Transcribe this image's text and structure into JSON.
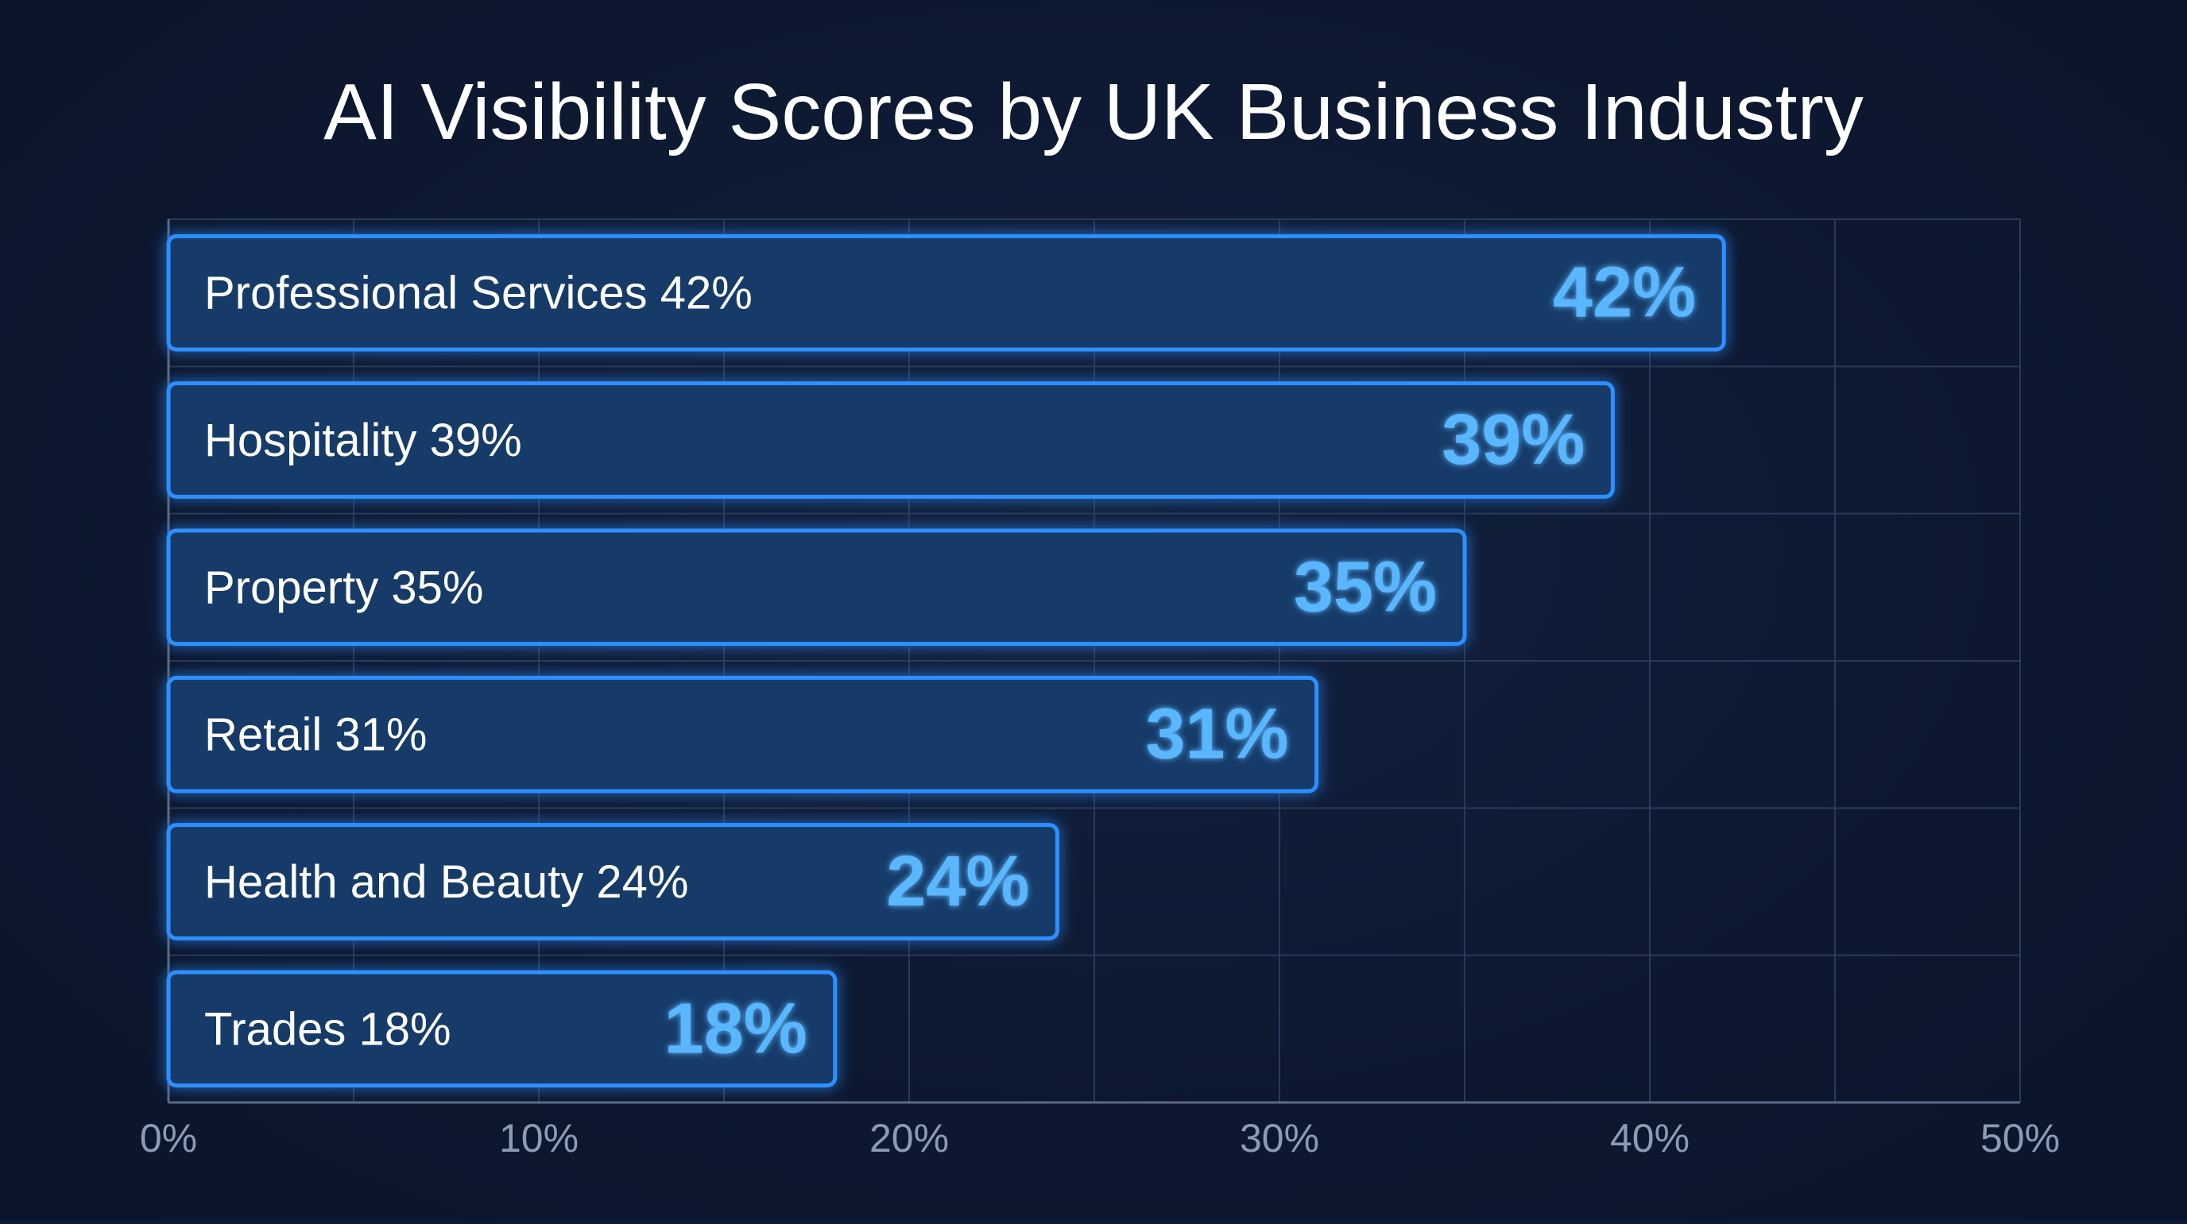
{
  "chart_data": {
    "type": "bar",
    "orientation": "horizontal",
    "title": "AI Visibility Scores by UK Business Industry",
    "xlabel": "",
    "ylabel": "",
    "xlim": [
      0,
      50
    ],
    "x_ticks": [
      0,
      10,
      20,
      30,
      40,
      50
    ],
    "x_tick_labels": [
      "0%",
      "10%",
      "20%",
      "30%",
      "40%",
      "50%"
    ],
    "grid": true,
    "legend": "none",
    "categories": [
      "Professional Services",
      "Hospitality",
      "Property",
      "Retail",
      "Health and Beauty",
      "Trades"
    ],
    "values": [
      42,
      39,
      35,
      31,
      24,
      18
    ],
    "bar_labels": [
      "Professional Services 42%",
      "Hospitality 39%",
      "Property 35%",
      "Retail 31%",
      "Health and Beauty 24%",
      "Trades 18%"
    ],
    "value_labels": [
      "42%",
      "39%",
      "35%",
      "31%",
      "24%",
      "18%"
    ]
  },
  "colors": {
    "background": "#0d1830",
    "bar_fill": "#173a68",
    "bar_stroke": "#2f8fff",
    "value_text": "#5ab6ff",
    "label_text": "#ffffff",
    "tick_text": "#8c9bb3",
    "grid": "#2a3958",
    "title_text": "#ffffff"
  }
}
